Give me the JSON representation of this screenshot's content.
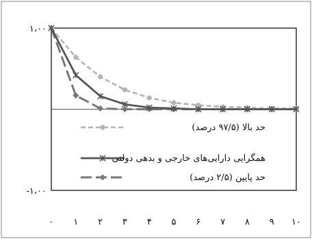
{
  "chart_data": {
    "type": "line",
    "title": "",
    "xlabel": "",
    "ylabel": "",
    "x": [
      0,
      1,
      2,
      3,
      4,
      5,
      6,
      7,
      8,
      9,
      10
    ],
    "x_tick_labels": [
      "۰",
      "۱",
      "۲",
      "۳",
      "۴",
      "۵",
      "۶",
      "۷",
      "۸",
      "۹",
      "۱۰"
    ],
    "y_tick_labels": [
      "۱،۰۰",
      "-۱،۰۰"
    ],
    "ylim": [
      -1,
      1
    ],
    "xlim": [
      0,
      10
    ],
    "grid": false,
    "legend_position": "inside-left",
    "series": [
      {
        "name": "حد بالا (۹۷/۵ درصد)",
        "style": "dashed",
        "color": "#b3b3b3",
        "marker": "circle",
        "x": [
          0,
          1,
          2,
          3,
          4,
          5,
          6,
          7,
          8,
          9,
          10
        ],
        "values": [
          1.0,
          0.64,
          0.4,
          0.24,
          0.14,
          0.08,
          0.05,
          0.03,
          0.02,
          0.01,
          0.01
        ]
      },
      {
        "name": "همگرایی دارایی‌های خارجی و بدهی دولتی",
        "style": "solid",
        "color": "#555555",
        "marker": "asterisk",
        "x": [
          0,
          1,
          2,
          3,
          4,
          5,
          6,
          7,
          8,
          9,
          10
        ],
        "values": [
          1.0,
          0.42,
          0.16,
          0.06,
          0.02,
          0.01,
          0.0,
          0.0,
          0.0,
          0.0,
          0.0
        ]
      },
      {
        "name": "حد پایین (۲/۵ درصد)",
        "style": "long-dash",
        "color": "#777777",
        "marker": "diamond",
        "x": [
          0,
          1,
          2,
          3,
          4,
          5,
          6,
          7,
          8,
          9,
          10
        ],
        "values": [
          1.0,
          0.17,
          0.01,
          0.0,
          0.0,
          0.0,
          0.0,
          0.0,
          0.0,
          0.0,
          0.0
        ]
      }
    ]
  }
}
